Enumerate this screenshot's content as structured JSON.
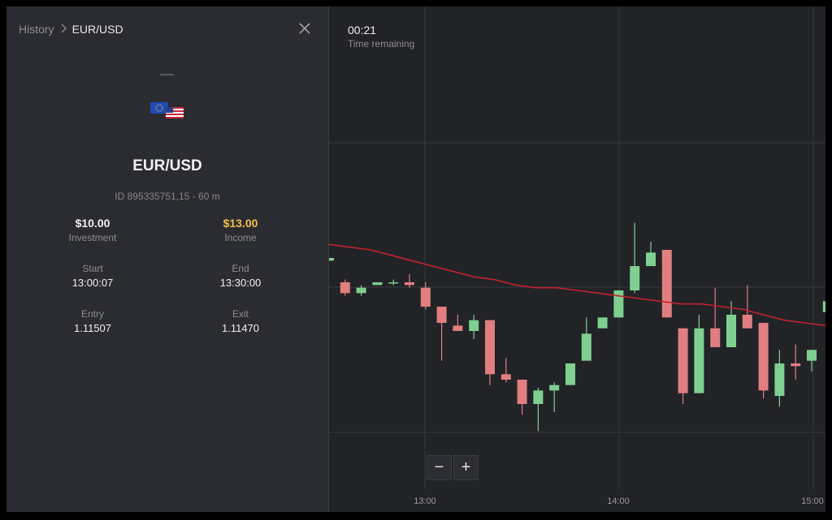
{
  "breadcrumb": {
    "root": "History",
    "current": "EUR/USD"
  },
  "asset": {
    "name": "EUR/USD",
    "id_line": "ID 895335751,15 - 60 m",
    "flag_icon": "eur-usd-flags-icon"
  },
  "trade": {
    "investment": {
      "value": "$10.00",
      "label": "Investment"
    },
    "income": {
      "value": "$13.00",
      "label": "Income"
    },
    "start": {
      "label": "Start",
      "value": "13:00:07"
    },
    "end": {
      "label": "End",
      "value": "13:30:00"
    },
    "entry": {
      "label": "Entry",
      "value": "1.11507"
    },
    "exit": {
      "label": "Exit",
      "value": "1.11470"
    }
  },
  "timer": {
    "value": "00:21",
    "label": "Time remaining"
  },
  "zoom": {
    "minus": "−",
    "plus": "+"
  },
  "colors": {
    "up": "#7fd08f",
    "down": "#e07f80",
    "ma": "#c0232a",
    "gold": "#f1c14b"
  },
  "chart_data": {
    "type": "candlestick",
    "x_ticks": [
      "13:00",
      "14:00",
      "15:00"
    ],
    "candles": [
      {
        "o": 1.1158,
        "c": 1.1159,
        "h": 1.1159,
        "l": 1.1158
      },
      {
        "o": 1.115,
        "c": 1.1146,
        "h": 1.1151,
        "l": 1.1145
      },
      {
        "o": 1.1146,
        "c": 1.1148,
        "h": 1.1149,
        "l": 1.1145
      },
      {
        "o": 1.1149,
        "c": 1.115,
        "h": 1.115,
        "l": 1.1149
      },
      {
        "o": 1.115,
        "c": 1.115,
        "h": 1.1151,
        "l": 1.1149
      },
      {
        "o": 1.115,
        "c": 1.1149,
        "h": 1.1153,
        "l": 1.1148
      },
      {
        "o": 1.1148,
        "c": 1.1141,
        "h": 1.115,
        "l": 1.114
      },
      {
        "o": 1.1141,
        "c": 1.1135,
        "h": 1.1141,
        "l": 1.1121
      },
      {
        "o": 1.1134,
        "c": 1.1132,
        "h": 1.1138,
        "l": 1.1132
      },
      {
        "o": 1.1132,
        "c": 1.1136,
        "h": 1.1138,
        "l": 1.1129
      },
      {
        "o": 1.1136,
        "c": 1.1116,
        "h": 1.1136,
        "l": 1.1112
      },
      {
        "o": 1.1116,
        "c": 1.1114,
        "h": 1.1122,
        "l": 1.1113
      },
      {
        "o": 1.1114,
        "c": 1.1105,
        "h": 1.1114,
        "l": 1.1101
      },
      {
        "o": 1.1105,
        "c": 1.111,
        "h": 1.1111,
        "l": 1.1095
      },
      {
        "o": 1.111,
        "c": 1.1112,
        "h": 1.1113,
        "l": 1.1102
      },
      {
        "o": 1.1112,
        "c": 1.112,
        "h": 1.112,
        "l": 1.1112
      },
      {
        "o": 1.1121,
        "c": 1.1131,
        "h": 1.1137,
        "l": 1.1121
      },
      {
        "o": 1.1133,
        "c": 1.1137,
        "h": 1.1137,
        "l": 1.1133
      },
      {
        "o": 1.1137,
        "c": 1.1147,
        "h": 1.1147,
        "l": 1.1137
      },
      {
        "o": 1.1147,
        "c": 1.1156,
        "h": 1.1172,
        "l": 1.1146
      },
      {
        "o": 1.1156,
        "c": 1.1161,
        "h": 1.1165,
        "l": 1.1156
      },
      {
        "o": 1.1162,
        "c": 1.1137,
        "h": 1.1162,
        "l": 1.1137
      },
      {
        "o": 1.1133,
        "c": 1.1109,
        "h": 1.1133,
        "l": 1.1105
      },
      {
        "o": 1.1109,
        "c": 1.1133,
        "h": 1.1138,
        "l": 1.1109
      },
      {
        "o": 1.1133,
        "c": 1.1126,
        "h": 1.1148,
        "l": 1.1126
      },
      {
        "o": 1.1126,
        "c": 1.1138,
        "h": 1.1143,
        "l": 1.1126
      },
      {
        "o": 1.1138,
        "c": 1.1133,
        "h": 1.1149,
        "l": 1.1133
      },
      {
        "o": 1.1135,
        "c": 1.111,
        "h": 1.1135,
        "l": 1.1107
      },
      {
        "o": 1.1108,
        "c": 1.112,
        "h": 1.1125,
        "l": 1.1104
      },
      {
        "o": 1.112,
        "c": 1.1119,
        "h": 1.1127,
        "l": 1.1114
      },
      {
        "o": 1.1121,
        "c": 1.1125,
        "h": 1.1125,
        "l": 1.1117
      },
      {
        "o": 1.1139,
        "c": 1.1143,
        "h": 1.1145,
        "l": 1.113
      }
    ],
    "ma": [
      1.1164,
      1.1163,
      1.1162,
      1.116,
      1.1158,
      1.1156,
      1.1154,
      1.1152,
      1.1151,
      1.1149,
      1.1148,
      1.1148,
      1.1147,
      1.1146,
      1.1145,
      1.1144,
      1.1143,
      1.1142,
      1.1142,
      1.1141,
      1.114,
      1.1138,
      1.1136,
      1.1135,
      1.1134
    ]
  }
}
